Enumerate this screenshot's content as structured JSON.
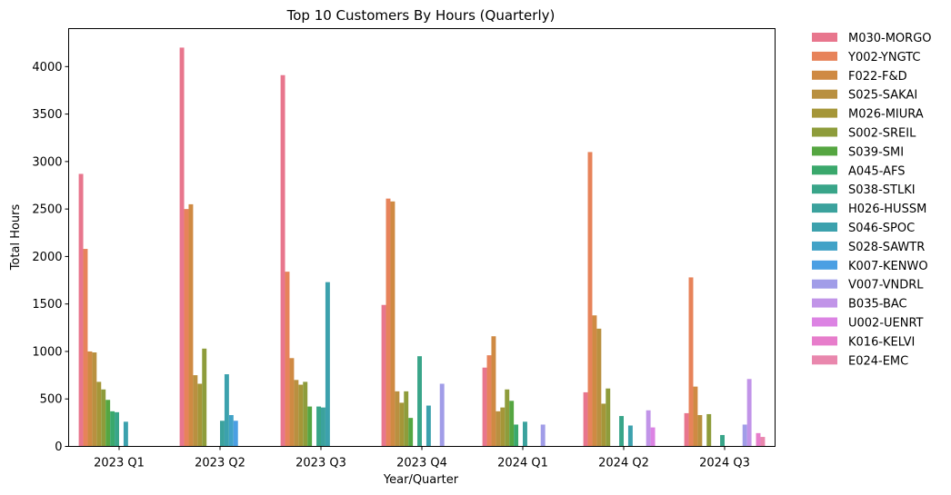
{
  "chart_data": {
    "type": "bar",
    "title": "Top 10 Customers By Hours (Quarterly)",
    "xlabel": "Year/Quarter",
    "ylabel": "Total Hours",
    "ylim": [
      0,
      4400
    ],
    "yticks": [
      0,
      500,
      1000,
      1500,
      2000,
      2500,
      3000,
      3500,
      4000
    ],
    "grid": false,
    "legend_position": "outside right",
    "categories": [
      "2023 Q1",
      "2023 Q2",
      "2023 Q3",
      "2023 Q4",
      "2024 Q1",
      "2024 Q2",
      "2024 Q3"
    ],
    "series": [
      {
        "name": "M030-MORGO",
        "color": "#e8768d",
        "values": [
          2870,
          4200,
          3910,
          1490,
          830,
          570,
          350
        ]
      },
      {
        "name": "Y002-YNGTC",
        "color": "#e7835a",
        "values": [
          2080,
          2500,
          1840,
          2610,
          960,
          3100,
          1780
        ]
      },
      {
        "name": "F022-F&D",
        "color": "#cf8a43",
        "values": [
          1000,
          2550,
          930,
          2580,
          1160,
          1380,
          630
        ]
      },
      {
        "name": "S025-SAKAI",
        "color": "#b99040",
        "values": [
          990,
          750,
          700,
          580,
          370,
          1240,
          330
        ]
      },
      {
        "name": "M026-MIURA",
        "color": "#a59638",
        "values": [
          680,
          660,
          650,
          460,
          410,
          450,
          0
        ]
      },
      {
        "name": "S002-SREIL",
        "color": "#8e9c3b",
        "values": [
          600,
          1030,
          680,
          580,
          600,
          610,
          340
        ]
      },
      {
        "name": "S039-SMI",
        "color": "#55a641",
        "values": [
          490,
          0,
          420,
          300,
          480,
          0,
          0
        ]
      },
      {
        "name": "A045-AFS",
        "color": "#3aa86c",
        "values": [
          370,
          0,
          0,
          0,
          230,
          0,
          0
        ]
      },
      {
        "name": "S038-STLKI",
        "color": "#39a589",
        "values": [
          360,
          0,
          420,
          950,
          0,
          320,
          120
        ]
      },
      {
        "name": "H026-HUSSM",
        "color": "#3ba29d",
        "values": [
          0,
          270,
          410,
          0,
          260,
          0,
          0
        ]
      },
      {
        "name": "S046-SPOC",
        "color": "#3ca1ad",
        "values": [
          260,
          760,
          1730,
          430,
          0,
          220,
          0
        ]
      },
      {
        "name": "S028-SAWTR",
        "color": "#41a2c7",
        "values": [
          0,
          330,
          0,
          0,
          0,
          0,
          0
        ]
      },
      {
        "name": "K007-KENWO",
        "color": "#4b9fe3",
        "values": [
          0,
          270,
          0,
          0,
          0,
          0,
          0
        ]
      },
      {
        "name": "V007-VNDRL",
        "color": "#a19de8",
        "values": [
          0,
          0,
          0,
          660,
          230,
          0,
          230
        ]
      },
      {
        "name": "B035-BAC",
        "color": "#c194e8",
        "values": [
          0,
          0,
          0,
          0,
          0,
          380,
          710
        ]
      },
      {
        "name": "U002-UENRT",
        "color": "#dc83e3",
        "values": [
          0,
          0,
          0,
          0,
          0,
          200,
          0
        ]
      },
      {
        "name": "K016-KELVI",
        "color": "#e77dcb",
        "values": [
          0,
          0,
          0,
          0,
          0,
          0,
          140
        ]
      },
      {
        "name": "E024-EMC",
        "color": "#e987ad",
        "values": [
          0,
          0,
          0,
          0,
          0,
          0,
          100
        ]
      }
    ]
  }
}
